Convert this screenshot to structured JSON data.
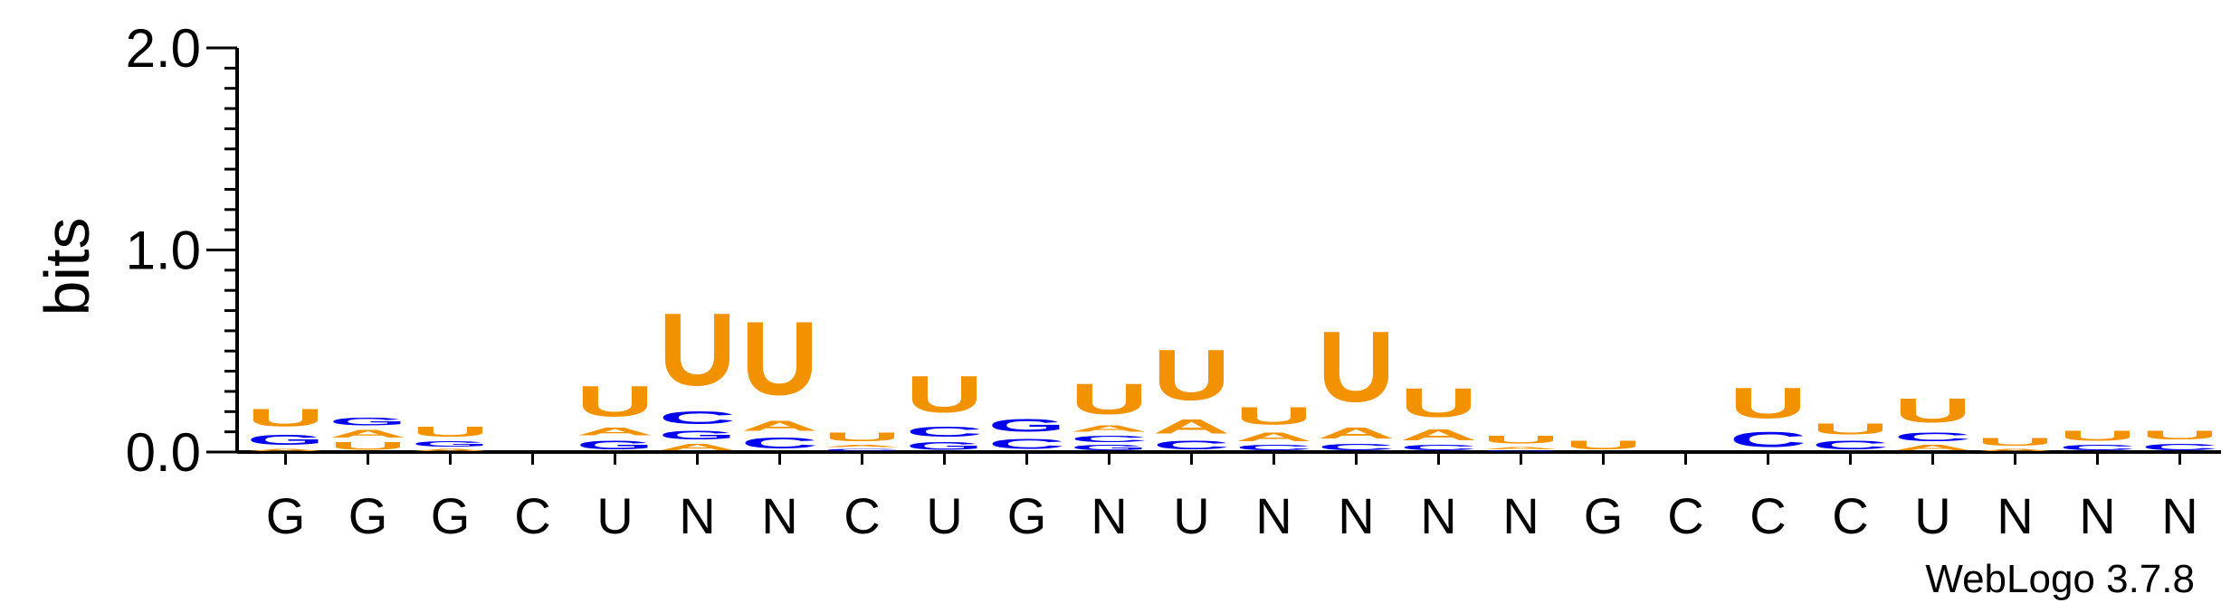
{
  "chart_data": {
    "type": "sequence-logo",
    "ylabel": "bits",
    "ylim": [
      0,
      2.0
    ],
    "y_ticks": [
      "0.0",
      "1.0",
      "2.0"
    ],
    "x_labels": [
      "G",
      "G",
      "G",
      "C",
      "U",
      "N",
      "N",
      "C",
      "U",
      "G",
      "N",
      "U",
      "N",
      "N",
      "N",
      "N",
      "G",
      "C",
      "C",
      "C",
      "U",
      "N",
      "N",
      "N"
    ],
    "colors": {
      "U": "#f39200",
      "A": "#f39200",
      "G": "#0000ee",
      "C": "#0000ee"
    },
    "columns": [
      [
        [
          "A",
          0.02
        ],
        [
          "G",
          0.08
        ],
        [
          "U",
          0.14
        ]
      ],
      [
        [
          "U",
          0.06
        ],
        [
          "A",
          0.06
        ],
        [
          "G",
          0.06
        ]
      ],
      [
        [
          "A",
          0.02
        ],
        [
          "G",
          0.04
        ],
        [
          "U",
          0.08
        ]
      ],
      [],
      [
        [
          "G",
          0.07
        ],
        [
          "A",
          0.06
        ],
        [
          "U",
          0.24
        ]
      ],
      [
        [
          "A",
          0.05
        ],
        [
          "G",
          0.07
        ],
        [
          "C",
          0.1
        ],
        [
          "U",
          0.57
        ]
      ],
      [
        [
          "C",
          0.09
        ],
        [
          "A",
          0.08
        ],
        [
          "U",
          0.58
        ]
      ],
      [
        [
          "C",
          0.02
        ],
        [
          "A",
          0.02
        ],
        [
          "U",
          0.07
        ]
      ],
      [
        [
          "G",
          0.06
        ],
        [
          "C",
          0.08
        ],
        [
          "U",
          0.29
        ]
      ],
      [
        [
          "C",
          0.08
        ],
        [
          "G",
          0.1
        ]
      ],
      [
        [
          "G",
          0.04
        ],
        [
          "C",
          0.05
        ],
        [
          "A",
          0.05
        ],
        [
          "U",
          0.24
        ]
      ],
      [
        [
          "C",
          0.07
        ],
        [
          "A",
          0.11
        ],
        [
          "U",
          0.4
        ]
      ],
      [
        [
          "C",
          0.04
        ],
        [
          "A",
          0.07
        ],
        [
          "U",
          0.14
        ]
      ],
      [
        [
          "C",
          0.05
        ],
        [
          "A",
          0.09
        ],
        [
          "U",
          0.56
        ]
      ],
      [
        [
          "C",
          0.04
        ],
        [
          "A",
          0.09
        ],
        [
          "U",
          0.23
        ]
      ],
      [
        [
          "G",
          0.01
        ],
        [
          "A",
          0.02
        ],
        [
          "U",
          0.06
        ]
      ],
      [
        [
          "U",
          0.07
        ]
      ],
      [],
      [
        [
          "C",
          0.12
        ],
        [
          "U",
          0.24
        ]
      ],
      [
        [
          "C",
          0.07
        ],
        [
          "U",
          0.09
        ]
      ],
      [
        [
          "A",
          0.04
        ],
        [
          "C",
          0.07
        ],
        [
          "U",
          0.19
        ]
      ],
      [
        [
          "A",
          0.02
        ],
        [
          "U",
          0.06
        ]
      ],
      [
        [
          "C",
          0.04
        ],
        [
          "U",
          0.08
        ]
      ],
      [
        [
          "C",
          0.05
        ],
        [
          "U",
          0.07
        ]
      ]
    ]
  },
  "footer": {
    "credit": "WebLogo 3.7.8"
  }
}
